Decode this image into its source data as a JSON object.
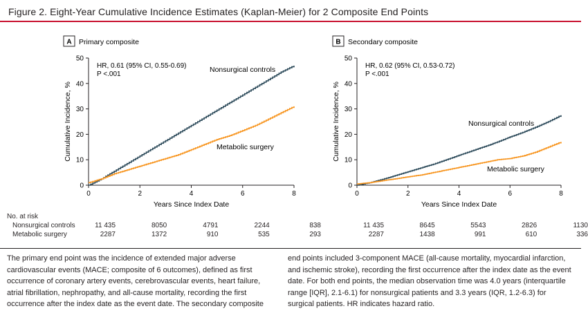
{
  "figure": {
    "title": "Figure 2. Eight-Year Cumulative Incidence Estimates (Kaplan-Meier) for 2 Composite End Points",
    "accent_color": "#c8102e"
  },
  "chart_data": [
    {
      "type": "line",
      "panel": "A",
      "title": "Primary composite",
      "xlabel": "Years Since Index Date",
      "ylabel": "Cumulative Incidence, %",
      "xlim": [
        0,
        8
      ],
      "ylim": [
        0,
        50
      ],
      "xticks": [
        0,
        2,
        4,
        6,
        8
      ],
      "yticks": [
        0,
        10,
        20,
        30,
        40,
        50
      ],
      "grid": false,
      "annotation": [
        "HR, 0.61 (95% CI, 0.55-0.69)",
        "P <.001"
      ],
      "series": [
        {
          "name": "Nonsurgical controls",
          "color": "#2c4a5a",
          "x": [
            0,
            0.5,
            1,
            1.5,
            2,
            2.5,
            3,
            3.5,
            4,
            4.5,
            5,
            5.5,
            6,
            6.5,
            7,
            7.5,
            8
          ],
          "y": [
            0,
            2.5,
            5.5,
            8.5,
            11.5,
            14.5,
            17.5,
            20.5,
            23.5,
            26.5,
            29.5,
            32.5,
            35.5,
            38.5,
            41.5,
            44.5,
            47
          ]
        },
        {
          "name": "Metabolic surgery",
          "color": "#f7941d",
          "x": [
            0,
            0.5,
            1,
            1.5,
            2,
            2.5,
            3,
            3.5,
            4,
            4.5,
            5,
            5.5,
            6,
            6.5,
            7,
            7.5,
            8
          ],
          "y": [
            1,
            2.5,
            4.5,
            6,
            7.5,
            9,
            10.5,
            12,
            14,
            16,
            18,
            19.5,
            21.5,
            23.5,
            26,
            28.5,
            31
          ]
        }
      ],
      "at_risk": {
        "Nonsurgical controls": [
          "11 435",
          "8050",
          "4791",
          "2244",
          "838"
        ],
        "Metabolic surgery": [
          "2287",
          "1372",
          "910",
          "535",
          "293"
        ]
      }
    },
    {
      "type": "line",
      "panel": "B",
      "title": "Secondary composite",
      "xlabel": "Years Since Index Date",
      "ylabel": "Cumulative Incidence, %",
      "xlim": [
        0,
        8
      ],
      "ylim": [
        0,
        50
      ],
      "xticks": [
        0,
        2,
        4,
        6,
        8
      ],
      "yticks": [
        0,
        10,
        20,
        30,
        40,
        50
      ],
      "grid": false,
      "annotation": [
        "HR, 0.62 (95% CI, 0.53-0.72)",
        "P <.001"
      ],
      "series": [
        {
          "name": "Nonsurgical controls",
          "color": "#2c4a5a",
          "x": [
            0,
            0.5,
            1,
            1.5,
            2,
            2.5,
            3,
            3.5,
            4,
            4.5,
            5,
            5.5,
            6,
            6.5,
            7,
            7.5,
            8
          ],
          "y": [
            0,
            1,
            2.3,
            3.8,
            5.3,
            6.8,
            8.3,
            10,
            11.8,
            13.5,
            15.2,
            17,
            19,
            20.8,
            22.8,
            25,
            27.5
          ]
        },
        {
          "name": "Metabolic surgery",
          "color": "#f7941d",
          "x": [
            0,
            0.5,
            1,
            1.5,
            2,
            2.5,
            3,
            3.5,
            4,
            4.5,
            5,
            5.5,
            6,
            6.5,
            7,
            7.5,
            8
          ],
          "y": [
            0.5,
            1,
            1.8,
            2.5,
            3.3,
            4,
            5,
            6,
            7,
            8,
            9,
            10,
            10.5,
            11.5,
            13,
            15,
            17
          ]
        }
      ],
      "at_risk": {
        "Nonsurgical controls": [
          "11 435",
          "8645",
          "5543",
          "2826",
          "1130"
        ],
        "Metabolic surgery": [
          "2287",
          "1438",
          "991",
          "610",
          "336"
        ]
      }
    }
  ],
  "risk_table": {
    "header": "No. at risk",
    "row_labels": [
      "Nonsurgical controls",
      "Metabolic surgery"
    ]
  },
  "caption": {
    "left": "The primary end point was the incidence of extended major adverse cardiovascular events (MACE; composite of 6 outcomes), defined as first occurrence of coronary artery events, cerebrovascular events, heart failure, atrial fibrillation, nephropathy, and all-cause mortality, recording the first occurrence after the index date as the event date. The secondary composite",
    "right": "end points included 3-component MACE (all-cause mortality, myocardial infarction, and ischemic stroke), recording the first occurrence after the index date as the event date. For both end points, the median observation time was 4.0 years (interquartile range [IQR], 2.1-6.1) for nonsurgical patients and 3.3 years (IQR, 1.2-6.3) for surgical patients. HR indicates hazard ratio."
  }
}
